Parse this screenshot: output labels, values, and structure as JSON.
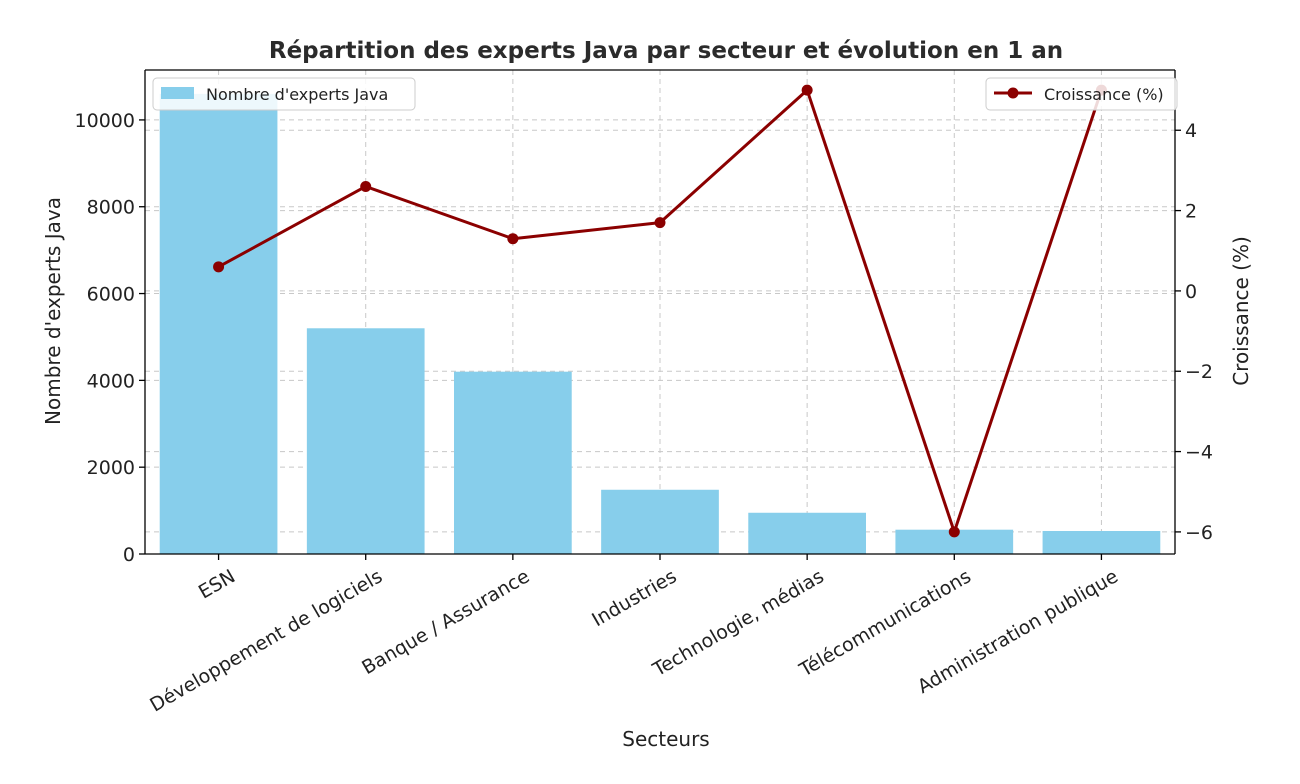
{
  "chart_data": {
    "type": "bar",
    "title": "Répartition des experts Java par secteur et évolution en 1 an",
    "xlabel": "Secteurs",
    "ylabel": "Nombre d'experts Java",
    "y2label": "Croissance (%)",
    "categories": [
      "ESN",
      "Développement de logiciels",
      "Banque / Assurance",
      "Industries",
      "Technologie, médias",
      "Télécommunications",
      "Administration publique"
    ],
    "series": [
      {
        "name": "Nombre d'experts Java",
        "kind": "bar",
        "axis": "left",
        "color": "#87ceeb",
        "values": [
          10600,
          5200,
          4200,
          1480,
          950,
          560,
          530
        ]
      },
      {
        "name": "Croissance (%)",
        "kind": "line",
        "axis": "right",
        "color": "#8b0000",
        "values": [
          0.6,
          2.6,
          1.3,
          1.7,
          5.0,
          -6.0,
          5.0
        ]
      }
    ],
    "ylim": [
      0,
      11150
    ],
    "y2lim": [
      -6.55,
      5.5
    ],
    "yticks": [
      "0",
      "2000",
      "4000",
      "6000",
      "8000",
      "10000"
    ],
    "y2ticks": [
      "−6",
      "−4",
      "−2",
      "0",
      "2",
      "4"
    ],
    "grid": true,
    "legend_left_placement": "upper-left",
    "legend_right_placement": "upper-right"
  }
}
